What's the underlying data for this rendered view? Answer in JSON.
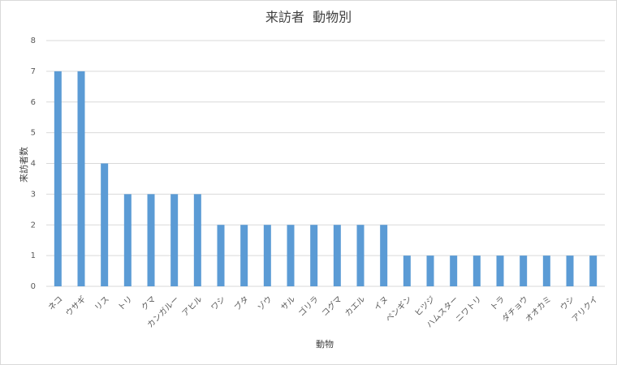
{
  "chart_data": {
    "type": "bar",
    "title": "来訪者  動物別",
    "x_label": "動物",
    "y_label": "来訪者数",
    "categories": [
      "ネコ",
      "ウサギ",
      "リス",
      "トリ",
      "クマ",
      "カンガルー",
      "アヒル",
      "ワシ",
      "ブタ",
      "ゾウ",
      "サル",
      "ゴリラ",
      "コグマ",
      "カエル",
      "イヌ",
      "ペンギン",
      "ヒツジ",
      "ハムスター",
      "ニワトリ",
      "トラ",
      "ダチョウ",
      "オオカミ",
      "ウシ",
      "アリクイ"
    ],
    "values": [
      7,
      7,
      4,
      3,
      3,
      3,
      3,
      2,
      2,
      2,
      2,
      2,
      2,
      2,
      2,
      1,
      1,
      1,
      1,
      1,
      1,
      1,
      1,
      1
    ],
    "color": "#5b9bd5",
    "ylim": [
      0,
      8
    ],
    "yticks": [
      0,
      1,
      2,
      3,
      4,
      5,
      6,
      7,
      8
    ],
    "grid": true
  }
}
